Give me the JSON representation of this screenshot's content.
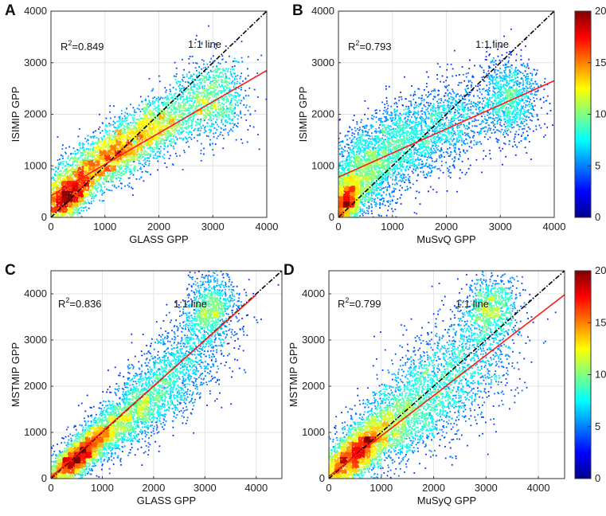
{
  "figure": {
    "colorbar": {
      "min": 0,
      "max": 20,
      "ticks": [
        "0",
        "5",
        "10",
        "15",
        "20"
      ],
      "stops": [
        "#00008f",
        "#0000ff",
        "#0080ff",
        "#00ffff",
        "#80ff80",
        "#ffff00",
        "#ff8000",
        "#ff0000",
        "#800000"
      ]
    }
  },
  "chart_data": [
    {
      "panel": "A",
      "type": "scatter",
      "xlabel": "GLASS GPP",
      "ylabel": "ISIMIP GPP",
      "xlim": [
        0,
        4000
      ],
      "ylim": [
        0,
        4000
      ],
      "xticks": [
        0,
        1000,
        2000,
        3000,
        4000
      ],
      "yticks": [
        0,
        1000,
        2000,
        3000,
        4000
      ],
      "r2_label": "R",
      "r2_text": "=0.849",
      "r2_sup": "2",
      "oneone_label": "1:1 line",
      "fit_line": {
        "x": [
          0,
          4000
        ],
        "y": [
          420,
          2850
        ]
      },
      "clusters": [
        {
          "cx": 900,
          "cy": 1050,
          "sx": 600,
          "sy": 420,
          "corr": 0.78,
          "n": 2600
        },
        {
          "cx": 300,
          "cy": 350,
          "sx": 260,
          "sy": 260,
          "corr": 0.6,
          "n": 1600
        },
        {
          "cx": 1900,
          "cy": 1750,
          "sx": 550,
          "sy": 420,
          "corr": 0.65,
          "n": 1800
        },
        {
          "cx": 3050,
          "cy": 2300,
          "sx": 300,
          "sy": 380,
          "corr": 0.1,
          "n": 900
        }
      ]
    },
    {
      "panel": "B",
      "type": "scatter",
      "xlabel": "MuSvQ GPP",
      "ylabel": "ISIMIP GPP",
      "xlim": [
        0,
        4000
      ],
      "ylim": [
        0,
        4000
      ],
      "xticks": [
        0,
        1000,
        2000,
        3000,
        4000
      ],
      "yticks": [
        0,
        1000,
        2000,
        3000,
        4000
      ],
      "r2_label": "R",
      "r2_text": "=0.793",
      "r2_sup": "2",
      "oneone_label": "1:1 line",
      "fit_line": {
        "x": [
          0,
          4000
        ],
        "y": [
          780,
          2650
        ]
      },
      "clusters": [
        {
          "cx": 500,
          "cy": 900,
          "sx": 480,
          "sy": 520,
          "corr": 0.55,
          "n": 2600
        },
        {
          "cx": 150,
          "cy": 300,
          "sx": 170,
          "sy": 260,
          "corr": 0.5,
          "n": 1500
        },
        {
          "cx": 1700,
          "cy": 1650,
          "sx": 650,
          "sy": 500,
          "corr": 0.5,
          "n": 1900
        },
        {
          "cx": 3200,
          "cy": 2300,
          "sx": 280,
          "sy": 400,
          "corr": 0.05,
          "n": 1000
        }
      ]
    },
    {
      "panel": "C",
      "type": "scatter",
      "xlabel": "GLASS GPP",
      "ylabel": "MSTMIP GPP",
      "xlim": [
        0,
        4500
      ],
      "ylim": [
        0,
        4500
      ],
      "xticks": [
        0,
        1000,
        2000,
        3000,
        4000
      ],
      "yticks": [
        0,
        1000,
        2000,
        3000,
        4000
      ],
      "r2_label": "R",
      "r2_text": "=0.836",
      "r2_sup": "2",
      "oneone_label": "1:1 line",
      "fit_line": {
        "x": [
          0,
          4000
        ],
        "y": [
          30,
          3980
        ]
      },
      "clusters": [
        {
          "cx": 500,
          "cy": 450,
          "sx": 380,
          "sy": 380,
          "corr": 0.85,
          "n": 2800
        },
        {
          "cx": 1400,
          "cy": 1250,
          "sx": 500,
          "sy": 480,
          "corr": 0.7,
          "n": 1800
        },
        {
          "cx": 2400,
          "cy": 2300,
          "sx": 550,
          "sy": 650,
          "corr": 0.6,
          "n": 1500
        },
        {
          "cx": 3100,
          "cy": 3700,
          "sx": 260,
          "sy": 350,
          "corr": 0.2,
          "n": 900
        }
      ]
    },
    {
      "panel": "D",
      "type": "scatter",
      "xlabel": "MuSyQ GPP",
      "ylabel": "MSTMIP GPP",
      "xlim": [
        0,
        4500
      ],
      "ylim": [
        0,
        4500
      ],
      "xticks": [
        0,
        1000,
        2000,
        3000,
        4000
      ],
      "yticks": [
        0,
        1000,
        2000,
        3000,
        4000
      ],
      "r2_label": "R",
      "r2_text": "=0.799",
      "r2_sup": "2",
      "oneone_label": "1:1 line",
      "fit_line": {
        "x": [
          0,
          4500
        ],
        "y": [
          50,
          3980
        ]
      },
      "clusters": [
        {
          "cx": 450,
          "cy": 500,
          "sx": 380,
          "sy": 420,
          "corr": 0.75,
          "n": 2600
        },
        {
          "cx": 1300,
          "cy": 1200,
          "sx": 520,
          "sy": 550,
          "corr": 0.6,
          "n": 1800
        },
        {
          "cx": 2300,
          "cy": 2200,
          "sx": 650,
          "sy": 750,
          "corr": 0.45,
          "n": 1600
        },
        {
          "cx": 3100,
          "cy": 3700,
          "sx": 260,
          "sy": 380,
          "corr": 0.15,
          "n": 900
        }
      ]
    }
  ]
}
